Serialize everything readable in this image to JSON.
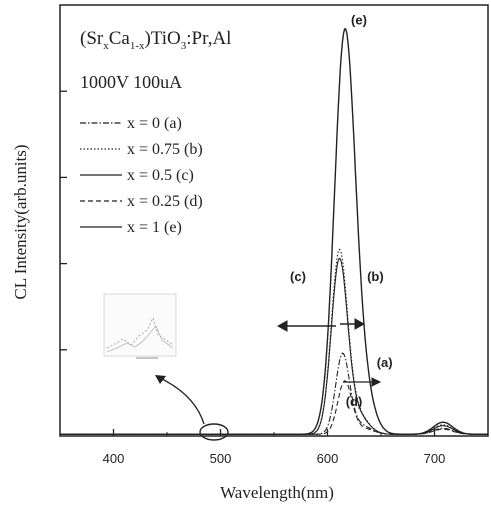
{
  "chart_data": {
    "type": "line",
    "title_html": {
      "prefix": "(Sr",
      "sub1": "x",
      "mid": "Ca",
      "sub2": "1-x",
      "mid2": ")TiO",
      "sub3": "3",
      "suffix": ":Pr,Al"
    },
    "subtitle": "1000V 100uA",
    "xlabel": "Wavelength(nm)",
    "ylabel": "CL Intensity(arb.units)",
    "xlim": [
      350,
      750
    ],
    "ylim": [
      0,
      1
    ],
    "x_ticks": [
      400,
      500,
      600,
      700
    ],
    "x_tick_labels": [
      "400",
      "500",
      "600",
      "700"
    ],
    "grid": false,
    "legend_position": "top-left",
    "legend": [
      {
        "label": "x = 0 (a)",
        "dash": "dash-dot"
      },
      {
        "label": "x = 0.75 (b)",
        "dash": "dotted"
      },
      {
        "label": "x = 0.5 (c)",
        "dash": "solid"
      },
      {
        "label": "x = 0.25 (d)",
        "dash": "dashed"
      },
      {
        "label": "x = 1 (e)",
        "dash": "solid"
      }
    ],
    "series": [
      {
        "key": "e",
        "peak_x": 616,
        "peak_y": 0.91,
        "width": 9.5,
        "tail": [
          [
            708,
            0.028
          ]
        ],
        "dash": "solid"
      },
      {
        "key": "b",
        "peak_x": 611,
        "peak_y": 0.415,
        "width": 7.5,
        "tail": [
          [
            708,
            0.022
          ]
        ],
        "dash": "dotted"
      },
      {
        "key": "c",
        "peak_x": 611,
        "peak_y": 0.395,
        "width": 7.5,
        "tail": [
          [
            708,
            0.02
          ]
        ],
        "dash": "solid"
      },
      {
        "key": "a",
        "peak_x": 614,
        "peak_y": 0.182,
        "width": 6.5,
        "tail": [
          [
            708,
            0.014
          ]
        ],
        "dash": "dash-dot"
      },
      {
        "key": "d",
        "peak_x": 616,
        "peak_y": 0.12,
        "width": 6.5,
        "tail": [
          [
            708,
            0.012
          ]
        ],
        "dash": "dashed"
      }
    ],
    "annotations": [
      {
        "text": "(e)",
        "x": 622,
        "y": 0.955
      },
      {
        "text": "(b)",
        "x": 637,
        "y": 0.36
      },
      {
        "text": "(c)",
        "x": 565,
        "y": 0.36
      },
      {
        "text": "(a)",
        "x": 646,
        "y": 0.16
      },
      {
        "text": "(d)",
        "x": 617,
        "y": 0.07
      }
    ]
  }
}
